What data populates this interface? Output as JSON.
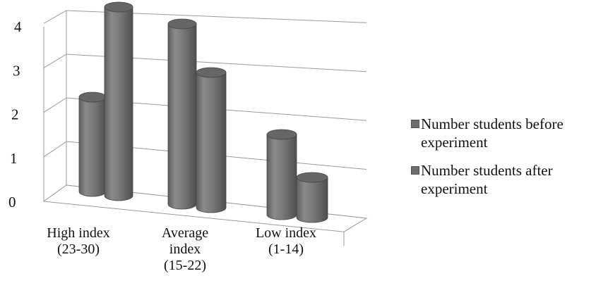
{
  "chart_data": {
    "type": "bar",
    "style": "3d-cylinder",
    "categories": [
      "High index (23-30)",
      "Average index (15-22)",
      "Low index (1-14)"
    ],
    "category_lines": [
      [
        "High index",
        "(23-30)"
      ],
      [
        "Average",
        "index",
        "(15-22)"
      ],
      [
        "Low index",
        "(1-14)"
      ]
    ],
    "series": [
      {
        "name": "Number students before experiment",
        "values": [
          2,
          4,
          2
        ],
        "color": "#707070"
      },
      {
        "name": "Number students after experiment",
        "values": [
          4,
          3,
          1
        ],
        "color": "#707070"
      }
    ],
    "ylim": [
      0,
      4
    ],
    "yticks": [
      "0",
      "1",
      "2",
      "3",
      "4"
    ],
    "grid": true,
    "legend_position": "right",
    "title": "",
    "xlabel": "",
    "ylabel": ""
  },
  "legend": {
    "items": [
      {
        "label": "Number students before experiment"
      },
      {
        "label": "Number students after experiment"
      }
    ]
  }
}
